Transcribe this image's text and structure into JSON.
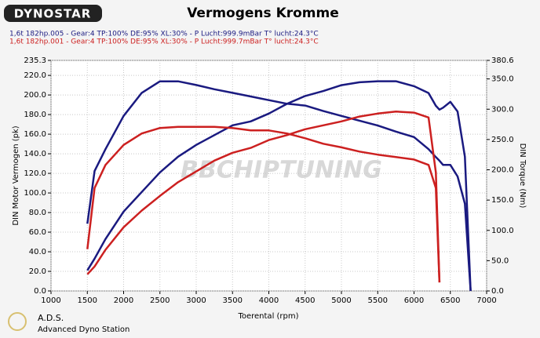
{
  "chart_data": {
    "type": "line",
    "logo": "DYNOSTAR",
    "title": "Vermogens Kromme",
    "legend_lines": [
      "1,6t 182hp.005 - Gear:4 TP:100% DE:95% XL:30%    - P Lucht:999.9mBar T° lucht:24.3°C",
      "1,6t 182hp.001 - Gear:4 TP:100% DE:95% XL:30%    - P Lucht:999.7mBar T° lucht:24.3°C"
    ],
    "legend_colors": [
      "#1a1a80",
      "#cc2020"
    ],
    "xlabel": "Toerental (rpm)",
    "ylabel": "DIN Motor Vermogen (pk)",
    "y2label": "DIN Torque (Nm)",
    "watermark": "BBCHIPTUNING",
    "footer": [
      "A.D.S.",
      "Advanced Dyno Station"
    ],
    "grid": true,
    "xlim": [
      1000,
      7000
    ],
    "xticks": [
      1000,
      1500,
      2000,
      2500,
      3000,
      3500,
      4000,
      4500,
      5000,
      5500,
      6000,
      6500,
      7000
    ],
    "ylim": [
      0,
      235.3
    ],
    "yticks": [
      {
        "value": 0,
        "label": "0.0"
      },
      {
        "value": 20,
        "label": "20.0"
      },
      {
        "value": 40,
        "label": "40.0"
      },
      {
        "value": 60,
        "label": "60.0"
      },
      {
        "value": 80,
        "label": "80.0"
      },
      {
        "value": 100,
        "label": "100.0"
      },
      {
        "value": 120,
        "label": "120.0"
      },
      {
        "value": 140,
        "label": "140.0"
      },
      {
        "value": 160,
        "label": "160.0"
      },
      {
        "value": 180,
        "label": "180.0"
      },
      {
        "value": 200,
        "label": "200.0"
      },
      {
        "value": 220,
        "label": "220.0"
      },
      235.3
    ],
    "y2lim": [
      0,
      380.6
    ],
    "y2ticks": [
      {
        "value": 0,
        "label": "0.0"
      },
      {
        "value": 50,
        "label": "50.0"
      },
      {
        "value": 100,
        "label": "100.0"
      },
      {
        "value": 150,
        "label": "150.0"
      },
      {
        "value": 200,
        "label": "200.0"
      },
      {
        "value": 250,
        "label": "250.0"
      },
      {
        "value": 300,
        "label": "300.0"
      },
      {
        "value": 350,
        "label": "350.0"
      },
      380.6
    ],
    "x": [
      1500,
      1600,
      1750,
      2000,
      2250,
      2500,
      2750,
      3000,
      3250,
      3500,
      3750,
      4000,
      4250,
      4500,
      4750,
      5000,
      5250,
      5500,
      5750,
      6000,
      6200,
      6300,
      6350,
      6400,
      6500,
      6600,
      6700,
      6780
    ],
    "series": [
      {
        "color": "#1a1a80",
        "axis": "y",
        "values": [
          21,
          33,
          53,
          81,
          101,
          121,
          137,
          149,
          159,
          169,
          173,
          181,
          191,
          199,
          204,
          210,
          213,
          214,
          214,
          209,
          202,
          189,
          185,
          187,
          193,
          183,
          137,
          0
        ]
      },
      {
        "color": "#1a1a80",
        "axis": "y2",
        "values": [
          111,
          198,
          234,
          289,
          327,
          346,
          346,
          340,
          333,
          327,
          321,
          315,
          309,
          306,
          297,
          289,
          281,
          273,
          263,
          254,
          234,
          221,
          215,
          208,
          208,
          189,
          144,
          0
        ]
      },
      {
        "color": "#cc2020",
        "axis": "y",
        "values": [
          17,
          25,
          42,
          65,
          82,
          97,
          111,
          122,
          133,
          141,
          146,
          154,
          159,
          165,
          169,
          173,
          178,
          181,
          183,
          182,
          177,
          121,
          9,
          null,
          null,
          null,
          null,
          null
        ]
      },
      {
        "color": "#cc2020",
        "axis": "y2",
        "values": [
          69,
          170,
          208,
          241,
          260,
          269,
          271,
          271,
          271,
          269,
          265,
          265,
          260,
          252,
          243,
          237,
          230,
          225,
          221,
          217,
          208,
          170,
          14,
          null,
          null,
          null,
          null,
          null
        ]
      }
    ]
  }
}
